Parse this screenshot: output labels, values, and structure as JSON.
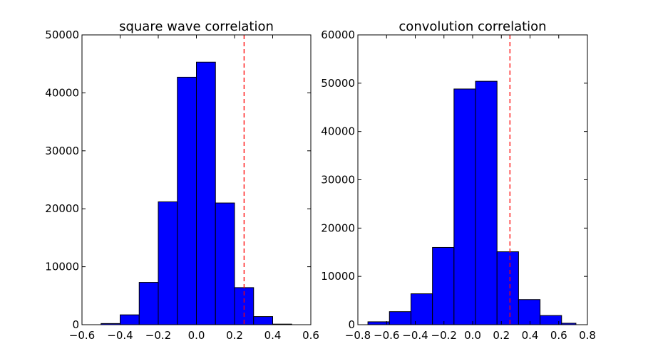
{
  "colors": {
    "bar_fill": "#0000ff",
    "bar_edge": "#000000",
    "reference_line": "#ff0000",
    "background": "#ffffff"
  },
  "chart_data": [
    {
      "type": "bar",
      "title": "square wave correlation",
      "xlabel": "",
      "ylabel": "",
      "xlim": [
        -0.6,
        0.6
      ],
      "ylim": [
        0,
        50000
      ],
      "x_ticks": [
        -0.6,
        -0.4,
        -0.2,
        0.0,
        0.2,
        0.4,
        0.6
      ],
      "x_tick_labels": [
        "−0.6",
        "−0.4",
        "−0.2",
        "0.0",
        "0.2",
        "0.4",
        "0.6"
      ],
      "y_ticks": [
        0,
        10000,
        20000,
        30000,
        40000,
        50000
      ],
      "y_tick_labels": [
        "0",
        "10000",
        "20000",
        "30000",
        "40000",
        "50000"
      ],
      "bin_edges": [
        -0.5,
        -0.4,
        -0.3,
        -0.2,
        -0.1,
        0.0,
        0.1,
        0.2,
        0.3,
        0.4,
        0.5
      ],
      "values": [
        200,
        1700,
        7300,
        21200,
        42700,
        45300,
        21000,
        6400,
        1400,
        100
      ],
      "reference_line": {
        "x": 0.25,
        "style": "dashed"
      },
      "grid": false,
      "legend": "none"
    },
    {
      "type": "bar",
      "title": "convolution correlation",
      "xlabel": "",
      "ylabel": "",
      "xlim": [
        -0.8,
        0.8
      ],
      "ylim": [
        0,
        60000
      ],
      "x_ticks": [
        -0.8,
        -0.6,
        -0.4,
        -0.2,
        0.0,
        0.2,
        0.4,
        0.6,
        0.8
      ],
      "x_tick_labels": [
        "−0.8",
        "−0.6",
        "−0.4",
        "−0.2",
        "0.0",
        "0.2",
        "0.4",
        "0.6",
        "0.8"
      ],
      "y_ticks": [
        0,
        10000,
        20000,
        30000,
        40000,
        50000,
        60000
      ],
      "y_tick_labels": [
        "0",
        "10000",
        "20000",
        "30000",
        "40000",
        "50000",
        "60000"
      ],
      "bin_edges": [
        -0.73,
        -0.58,
        -0.43,
        -0.28,
        -0.13,
        0.02,
        0.17,
        0.32,
        0.47,
        0.62,
        0.72
      ],
      "values": [
        600,
        2700,
        6400,
        16000,
        48800,
        50400,
        15100,
        5200,
        1900,
        300
      ],
      "reference_line": {
        "x": 0.26,
        "style": "dashed"
      },
      "grid": false,
      "legend": "none"
    }
  ]
}
